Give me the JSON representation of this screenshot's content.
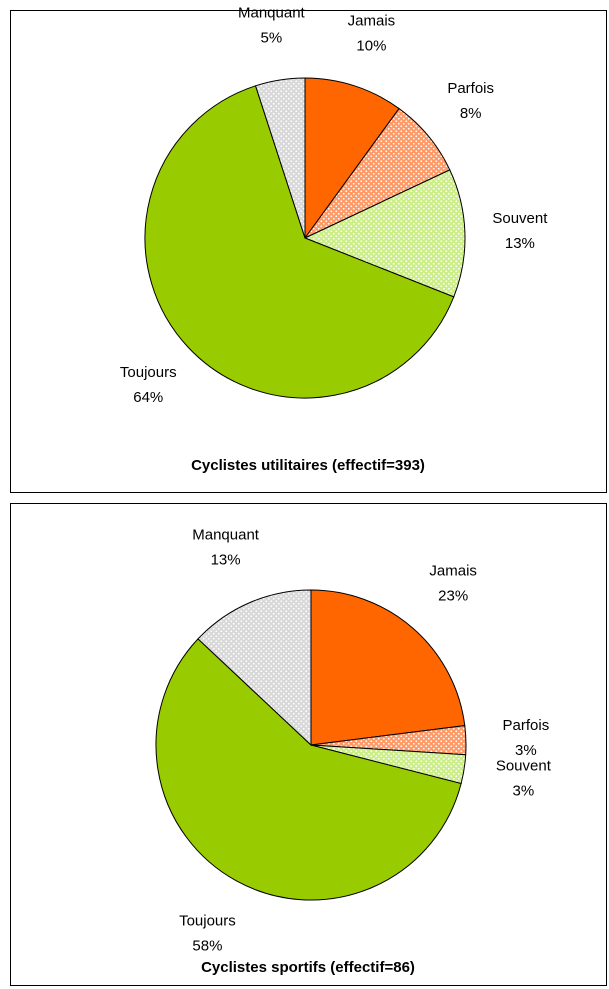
{
  "chart_data": [
    {
      "type": "pie",
      "title": "Cyclistes utilitaires (effectif=393)",
      "categories": [
        "Jamais",
        "Parfois",
        "Souvent",
        "Toujours",
        "Manquant"
      ],
      "values": [
        10,
        8,
        13,
        64,
        5
      ],
      "value_labels": [
        "10%",
        "8%",
        "13%",
        "64%",
        "5%"
      ],
      "colors": [
        "#ff6600",
        "#ff9966",
        "#ccee88",
        "#99cc00",
        "#d8d8d8"
      ],
      "patterned": [
        false,
        true,
        true,
        false,
        true
      ]
    },
    {
      "type": "pie",
      "title": "Cyclistes sportifs (effectif=86)",
      "categories": [
        "Jamais",
        "Parfois",
        "Souvent",
        "Toujours",
        "Manquant"
      ],
      "values": [
        23,
        3,
        3,
        58,
        13
      ],
      "value_labels": [
        "23%",
        "3%",
        "3%",
        "58%",
        "13%"
      ],
      "colors": [
        "#ff6600",
        "#ff9966",
        "#ccee88",
        "#99cc00",
        "#d8d8d8"
      ],
      "patterned": [
        false,
        true,
        true,
        false,
        true
      ]
    }
  ]
}
